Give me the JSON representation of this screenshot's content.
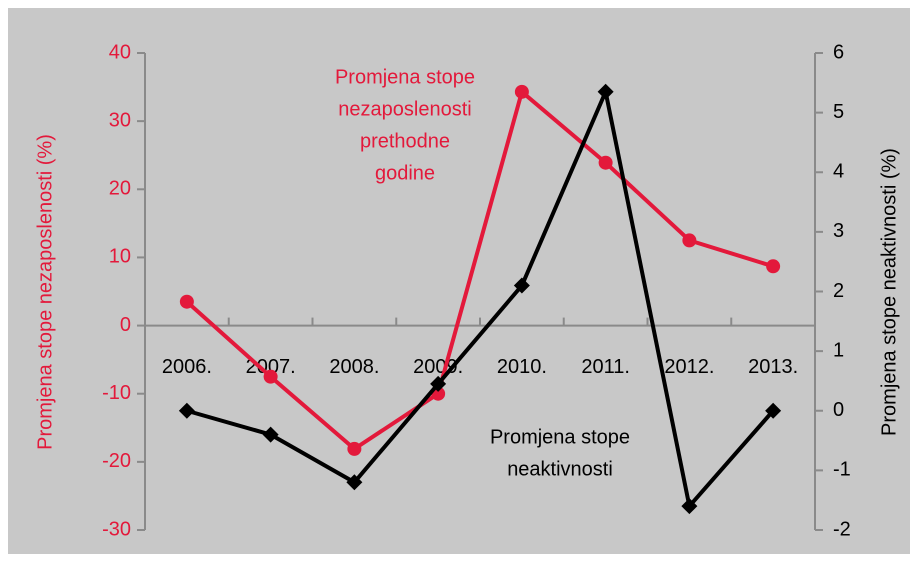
{
  "chart_data": {
    "type": "line",
    "categories": [
      "2006.",
      "2007.",
      "2008.",
      "2009.",
      "2010.",
      "2011.",
      "2012.",
      "2013."
    ],
    "series": [
      {
        "name": "Promjena stope nezaposlenosti prethodne godine",
        "color": "#e3193b",
        "marker": "circle",
        "values": [
          3.5,
          -7.5,
          -18.1,
          -10,
          34.3,
          23.9,
          12.5,
          8.7
        ]
      },
      {
        "name": "Promjena stope neaktivnosti",
        "color": "#000000",
        "marker": "diamond",
        "axis": "y2",
        "values": [
          0,
          -0.4,
          -1.2,
          0.45,
          2.1,
          5.35,
          -1.6,
          0
        ]
      }
    ],
    "annotations": [
      {
        "lines": [
          "Promjena stope",
          "nezaposlenosti",
          "prethodne",
          "godine"
        ],
        "color": "#e3193b"
      },
      {
        "lines": [
          "Promjena stope",
          "neaktivnosti"
        ],
        "color": "#000000"
      }
    ],
    "ylabel": "Promjena stope nezaposlenosti (%)",
    "y2label": "Promjena stope neaktivnosti (%)",
    "ylim": [
      -30,
      40
    ],
    "yticks": [
      -30,
      -20,
      -10,
      0,
      10,
      20,
      30,
      40
    ],
    "y2lim": [
      -2,
      6
    ],
    "y2ticks": [
      -2,
      -1,
      0,
      1,
      2,
      3,
      4,
      5,
      6
    ],
    "grid": false
  }
}
